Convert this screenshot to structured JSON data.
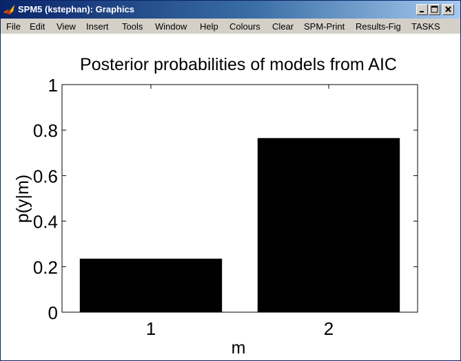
{
  "window": {
    "title": "SPM5 (kstephan): Graphics",
    "controls": {
      "minimize_icon": "minimize-icon",
      "maximize_icon": "maximize-icon",
      "close_icon": "close-icon"
    }
  },
  "menu": {
    "items": [
      "File",
      "Edit",
      "View",
      "Insert",
      "Tools",
      "Window",
      "Help",
      "Colours",
      "Clear",
      "SPM-Print",
      "Results-Fig",
      "TASKS"
    ]
  },
  "colors": {
    "titlebar_start": "#0a246a",
    "titlebar_end": "#a6caf0",
    "menubar": "#d4d0c8",
    "bars": "#000000",
    "background": "#ffffff"
  },
  "chart_data": {
    "type": "bar",
    "title": "Posterior probabilities of models from AIC",
    "xlabel": "m",
    "ylabel": "p(y|m)",
    "categories": [
      "1",
      "2"
    ],
    "values": [
      0.235,
      0.765
    ],
    "ylim": [
      0,
      1
    ],
    "yticks": [
      "0",
      "0.2",
      "0.4",
      "0.6",
      "0.8",
      "1"
    ],
    "grid": false,
    "bar_color": "#000000"
  }
}
